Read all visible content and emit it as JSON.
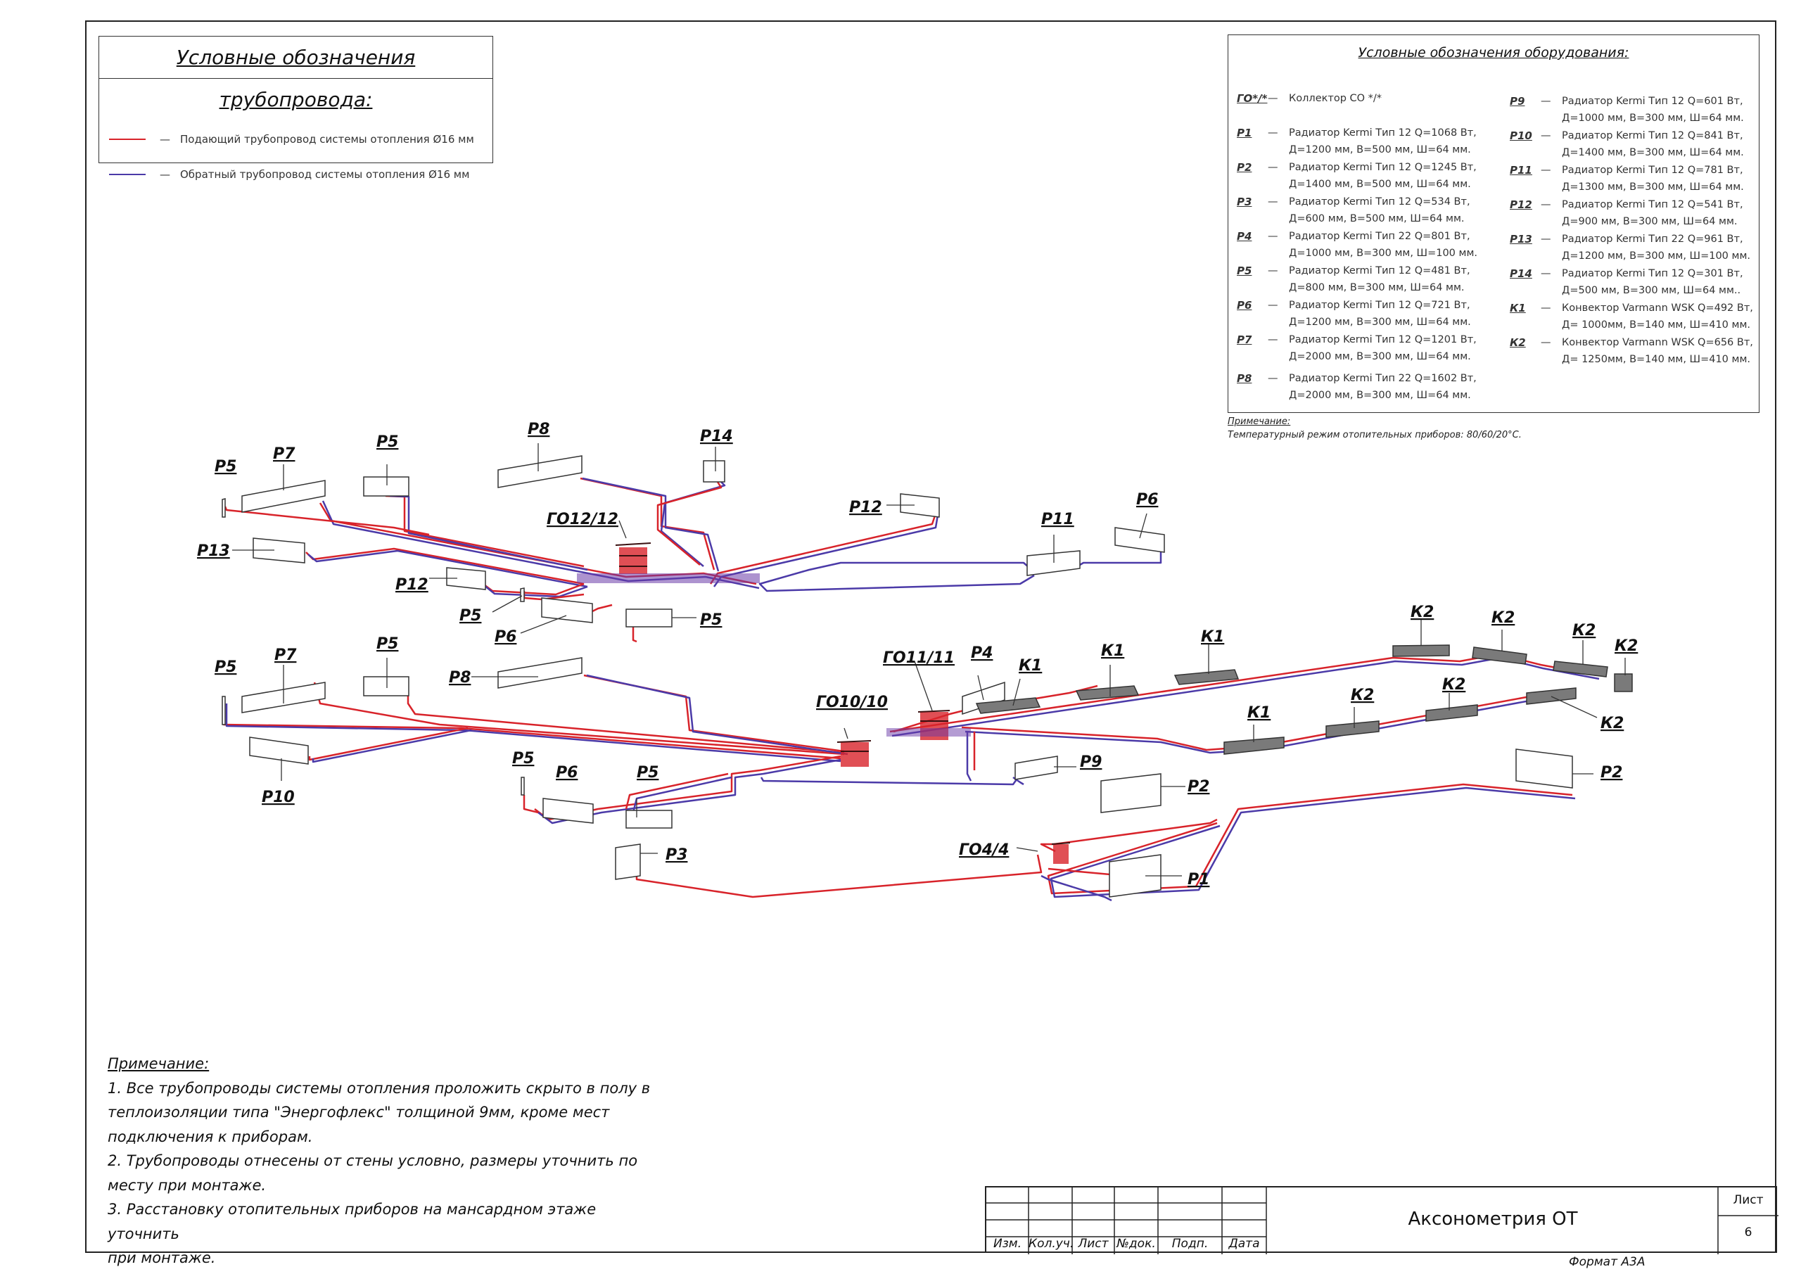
{
  "pipe_legend": {
    "title": "Условные обозначения трубопровода:",
    "items": [
      {
        "label": "Подающий трубопровод системы отопления Ø16 мм",
        "color": "#d8232a"
      },
      {
        "label": "Обратный трубопровод системы отопления Ø16 мм",
        "color": "#4b3aa8"
      }
    ]
  },
  "equipment_legend": {
    "title": "Условные обозначения оборудования:",
    "left": [
      {
        "code": "ГО*/*",
        "l1": "Коллектор СО */*",
        "l2": ""
      },
      {
        "code": "Р1",
        "l1": "Радиатор Kermi Тип 12 Q=1068 Вт,",
        "l2": "Д=1200 мм, В=500 мм, Ш=64 мм."
      },
      {
        "code": "Р2",
        "l1": "Радиатор Kermi Тип 12 Q=1245 Вт,",
        "l2": "Д=1400 мм, В=500 мм, Ш=64 мм."
      },
      {
        "code": "Р3",
        "l1": "Радиатор Kermi Тип 12 Q=534 Вт,",
        "l2": "Д=600 мм, В=500 мм, Ш=64 мм."
      },
      {
        "code": "Р4",
        "l1": "Радиатор Kermi Тип 22 Q=801 Вт,",
        "l2": "Д=1000 мм, В=300 мм, Ш=100 мм."
      },
      {
        "code": "Р5",
        "l1": "Радиатор Kermi Тип 12 Q=481 Вт,",
        "l2": "Д=800 мм, В=300 мм, Ш=64 мм."
      },
      {
        "code": "Р6",
        "l1": "Радиатор Kermi Тип 12 Q=721 Вт,",
        "l2": "Д=1200 мм, В=300 мм, Ш=64 мм."
      },
      {
        "code": "Р7",
        "l1": "Радиатор Kermi Тип 12 Q=1201 Вт,",
        "l2": "Д=2000 мм, В=300 мм, Ш=64 мм."
      },
      {
        "code": "Р8",
        "l1": "Радиатор Kermi Тип 22 Q=1602 Вт,",
        "l2": "Д=2000 мм, В=300 мм, Ш=64 мм."
      }
    ],
    "right": [
      {
        "code": "Р9",
        "l1": "Радиатор Kermi Тип 12 Q=601 Вт,",
        "l2": "Д=1000 мм, В=300 мм, Ш=64 мм."
      },
      {
        "code": "Р10",
        "l1": "Радиатор Kermi Тип 12 Q=841 Вт,",
        "l2": "Д=1400 мм, В=300 мм, Ш=64 мм."
      },
      {
        "code": "Р11",
        "l1": "Радиатор Kermi Тип 12 Q=781 Вт,",
        "l2": "Д=1300 мм, В=300 мм, Ш=64 мм."
      },
      {
        "code": "Р12",
        "l1": "Радиатор Kermi Тип 12 Q=541 Вт,",
        "l2": "Д=900 мм, В=300 мм, Ш=64 мм."
      },
      {
        "code": "Р13",
        "l1": "Радиатор Kermi Тип 22 Q=961 Вт,",
        "l2": "Д=1200 мм, В=300 мм, Ш=100 мм."
      },
      {
        "code": "Р14",
        "l1": "Радиатор Kermi Тип 12 Q=301 Вт,",
        "l2": "Д=500 мм, В=300 мм, Ш=64 мм.."
      },
      {
        "code": "К1",
        "l1": "Конвектор Varmann WSK Q=492 Вт,",
        "l2": "Д= 1000мм, В=140 мм, Ш=410 мм."
      },
      {
        "code": "К2",
        "l1": "Конвектор Varmann WSK Q=656 Вт,",
        "l2": "Д= 1250мм, В=140 мм, Ш=410 мм."
      }
    ]
  },
  "small_note": {
    "header": "Примечание:",
    "text": "Температурный режим отопительных приборов: 80/60/20°С."
  },
  "notes": {
    "header": "Примечание:",
    "lines": [
      "1. Все трубопроводы системы отопления проложить скрыто в полу в",
      "теплоизоляции типа \"Энергофлекс\" толщиной 9мм, кроме мест",
      "подключения к приборам.",
      "2. Трубопроводы отнесены от стены условно, размеры уточнить по",
      "месту при монтаже.",
      "3. Расстановку отопительных приборов на мансардном этаже уточнить",
      "при монтаже."
    ]
  },
  "diagram_labels": {
    "go12": "ГО12/12",
    "go11": "ГО11/11",
    "go10": "ГО10/10",
    "go4": "ГО4/4",
    "r1": "Р1",
    "r2": "Р2",
    "r3": "Р3",
    "r4": "Р4",
    "r5": "Р5",
    "r6": "Р6",
    "r7": "Р7",
    "r8": "Р8",
    "r9": "Р9",
    "r10": "Р10",
    "r11": "Р11",
    "r12": "Р12",
    "r13": "Р13",
    "r14": "Р14",
    "k1": "К1",
    "k2": "К2"
  },
  "title_block": {
    "col_labels": [
      "Изм.",
      "Кол.уч.",
      "Лист",
      "№док.",
      "Подп.",
      "Дата"
    ],
    "drawing_title": "Аксонометрия ОТ",
    "sheet_label": "Лист",
    "sheet_number": "6",
    "format": "Формат А3А"
  },
  "colors": {
    "supply": "#d8232a",
    "return": "#4b3aa8",
    "radiator_fill": "#ffffff",
    "convector_fill": "#7a7a7a"
  }
}
